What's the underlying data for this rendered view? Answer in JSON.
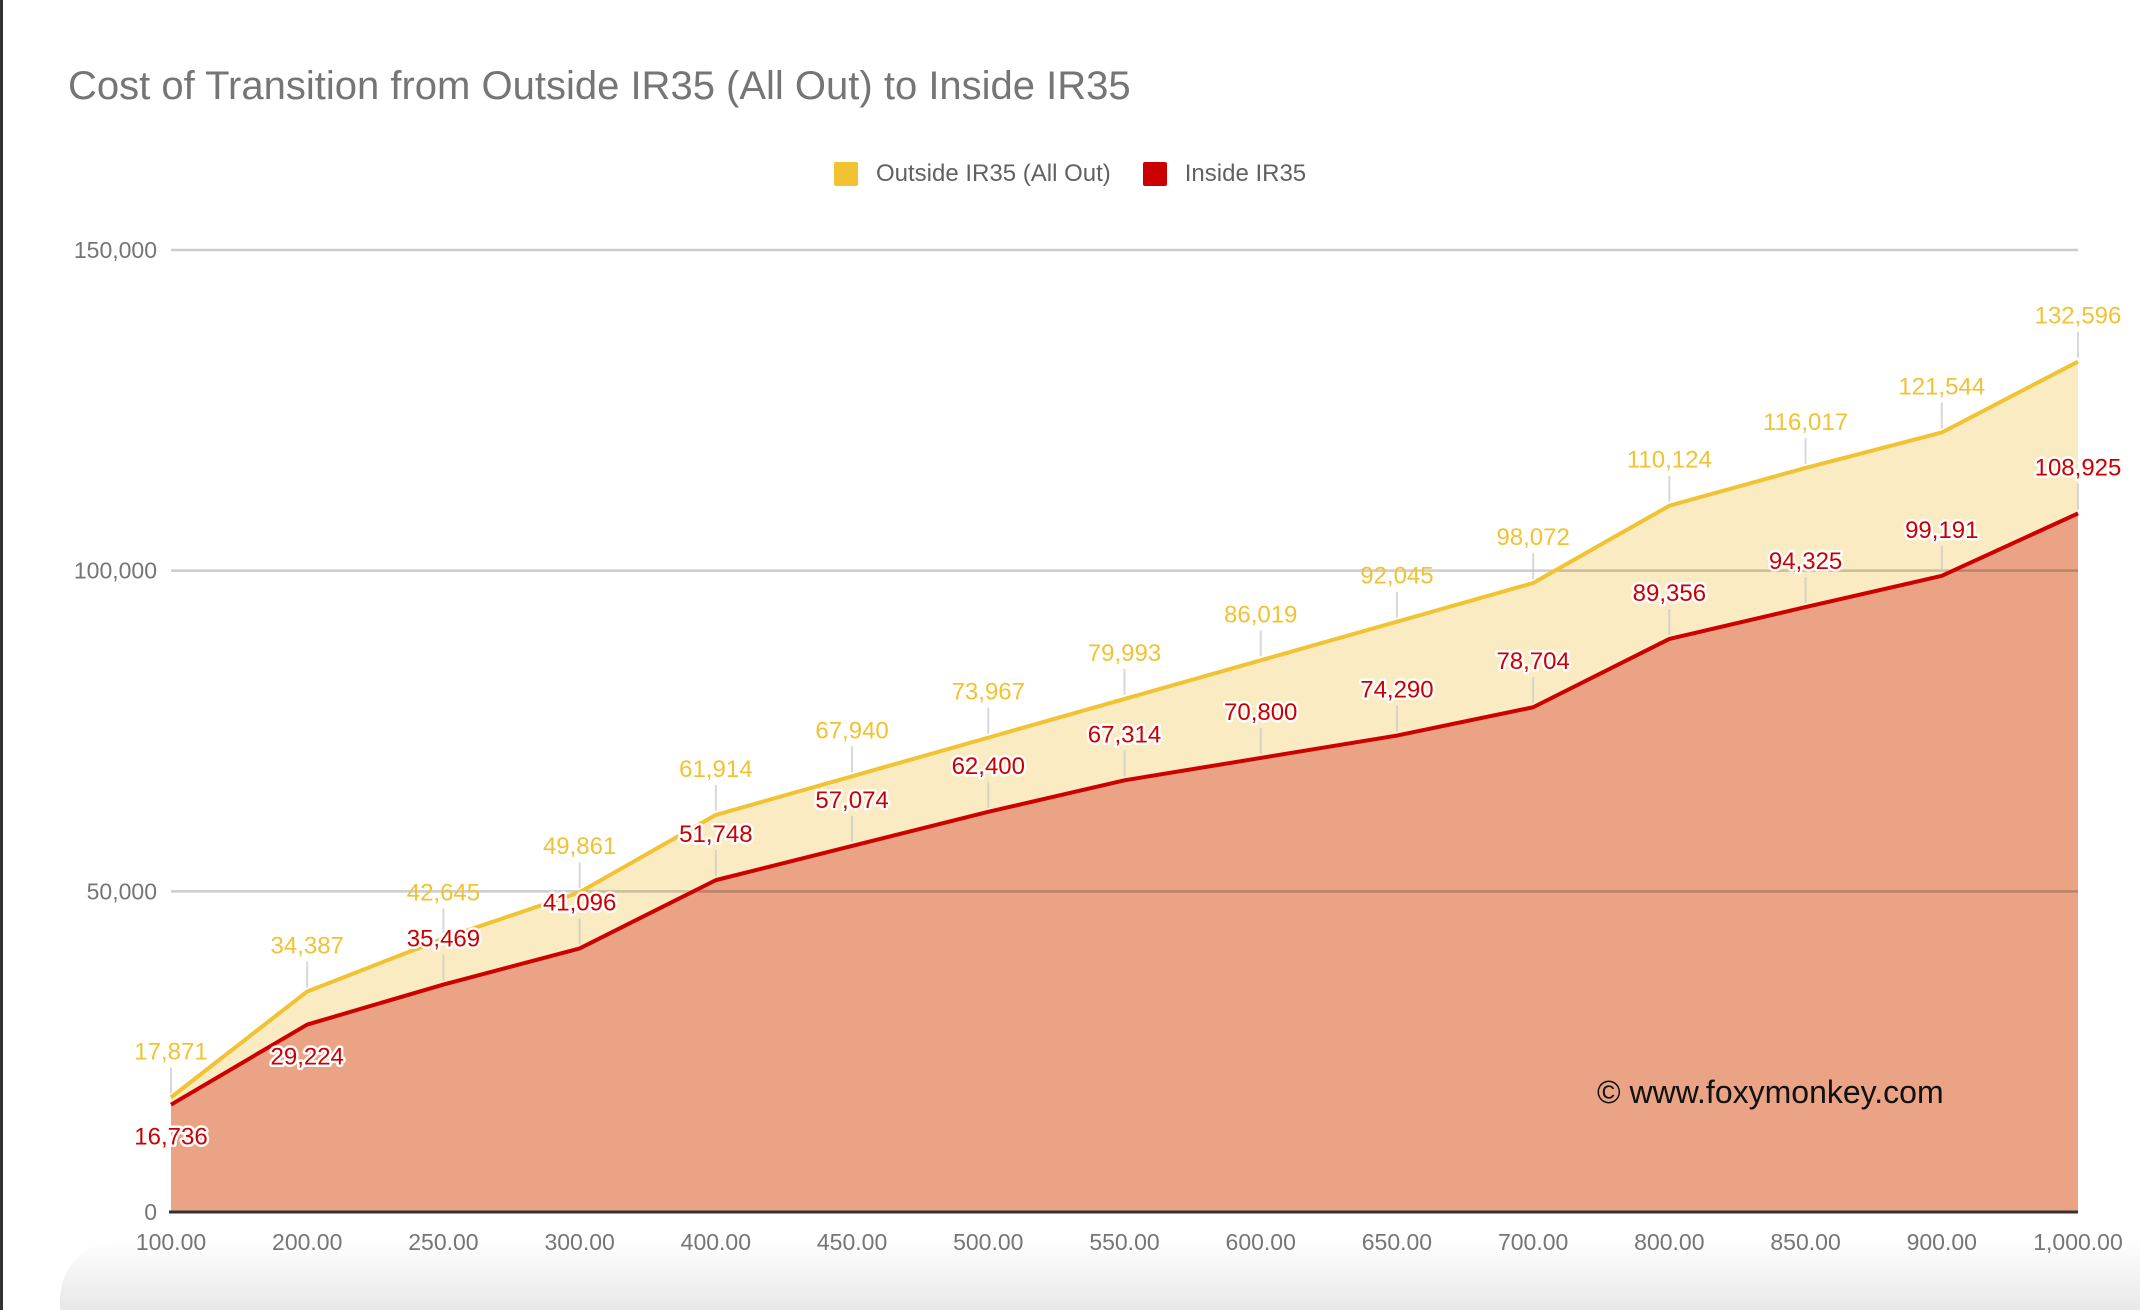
{
  "chart_data": {
    "type": "area",
    "title": "Cost of Transition from Outside IR35 (All Out) to Inside IR35",
    "xlabel": "",
    "ylabel": "",
    "categories": [
      "100.00",
      "200.00",
      "250.00",
      "300.00",
      "400.00",
      "450.00",
      "500.00",
      "550.00",
      "600.00",
      "650.00",
      "700.00",
      "800.00",
      "850.00",
      "900.00",
      "1,000.00"
    ],
    "ylim": [
      0,
      150000
    ],
    "yticks": [
      0,
      50000,
      100000,
      150000
    ],
    "ytick_labels": [
      "0",
      "50,000",
      "100,000",
      "150,000"
    ],
    "grid": true,
    "legend_position": "top",
    "series": [
      {
        "name": "Outside IR35 (All Out)",
        "color": "#f1c232",
        "fill": "#fbebc2",
        "values": [
          17871,
          34387,
          42645,
          49861,
          61914,
          67940,
          73967,
          79993,
          86019,
          92045,
          98072,
          110124,
          116017,
          121544,
          132596
        ],
        "labels": [
          "17,871",
          "34,387",
          "42,645",
          "49,861",
          "61,914",
          "67,940",
          "73,967",
          "79,993",
          "86,019",
          "92,045",
          "98,072",
          "110,124",
          "116,017",
          "121,544",
          "132,596"
        ]
      },
      {
        "name": "Inside IR35",
        "color": "#cc0000",
        "fill": "#eaa385",
        "values": [
          16736,
          29224,
          35469,
          41096,
          51748,
          57074,
          62400,
          67314,
          70800,
          74290,
          78704,
          89356,
          94325,
          99191,
          108925
        ],
        "labels": [
          "16,736",
          "29,224",
          "35,469",
          "41,096",
          "51,748",
          "57,074",
          "62,400",
          "67,314",
          "70,800",
          "74,290",
          "78,704",
          "89,356",
          "94,325",
          "99,191",
          "108,925"
        ]
      }
    ],
    "annotation": "© www.foxymonkey.com"
  }
}
